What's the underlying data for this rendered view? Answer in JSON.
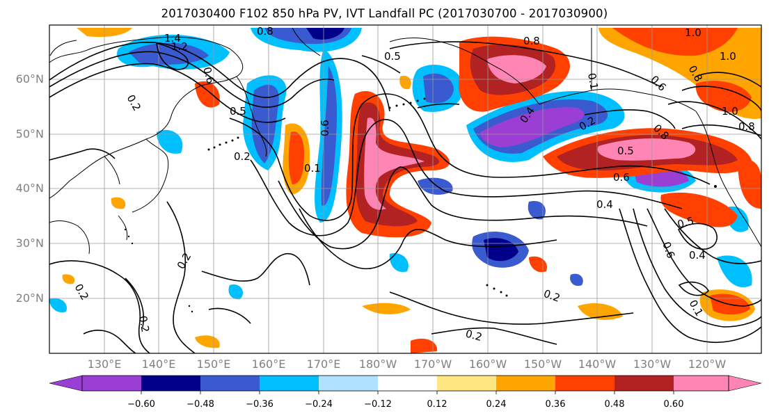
{
  "title": "2017030400 F102 850 hPa PV, IVT Landfall PC (2017030700 - 2017030900)",
  "lat_labels": [
    "60°N",
    "50°N",
    "40°N",
    "30°N",
    "20°N"
  ],
  "lon_labels": [
    "130°E",
    "140°E",
    "150°E",
    "160°E",
    "170°E",
    "180°W",
    "170°W",
    "160°W",
    "150°W",
    "140°W",
    "130°W",
    "120°W"
  ],
  "colorbar": {
    "ticks": [
      "−0.60",
      "−0.48",
      "−0.36",
      "−0.24",
      "−0.12",
      "0.12",
      "0.24",
      "0.36",
      "0.48",
      "0.60"
    ],
    "colors": [
      "#9b3fd4",
      "#00008b",
      "#3a5acf",
      "#00bfff",
      "#b0e2ff",
      "#ffffff",
      "#ffe680",
      "#ffa500",
      "#ff4000",
      "#b22222",
      "#ff85b5"
    ]
  },
  "contour_labels": [
    "1.4",
    "1.2",
    "0.8",
    "0.5",
    "0.2",
    "0.6",
    "0.8",
    "1.0",
    "1.0",
    "0.5",
    "0.2",
    "0.6",
    "0.1",
    "0.4",
    "0.2",
    "0.8",
    "0.5",
    "0.6",
    "0.4",
    "0.5",
    "0.4",
    "0.6",
    "0.2",
    "0.2",
    "0.2",
    "0.2",
    "0.2",
    "0.1",
    "1.0",
    "0.8",
    "0.6",
    "0.8",
    "0.1"
  ]
}
